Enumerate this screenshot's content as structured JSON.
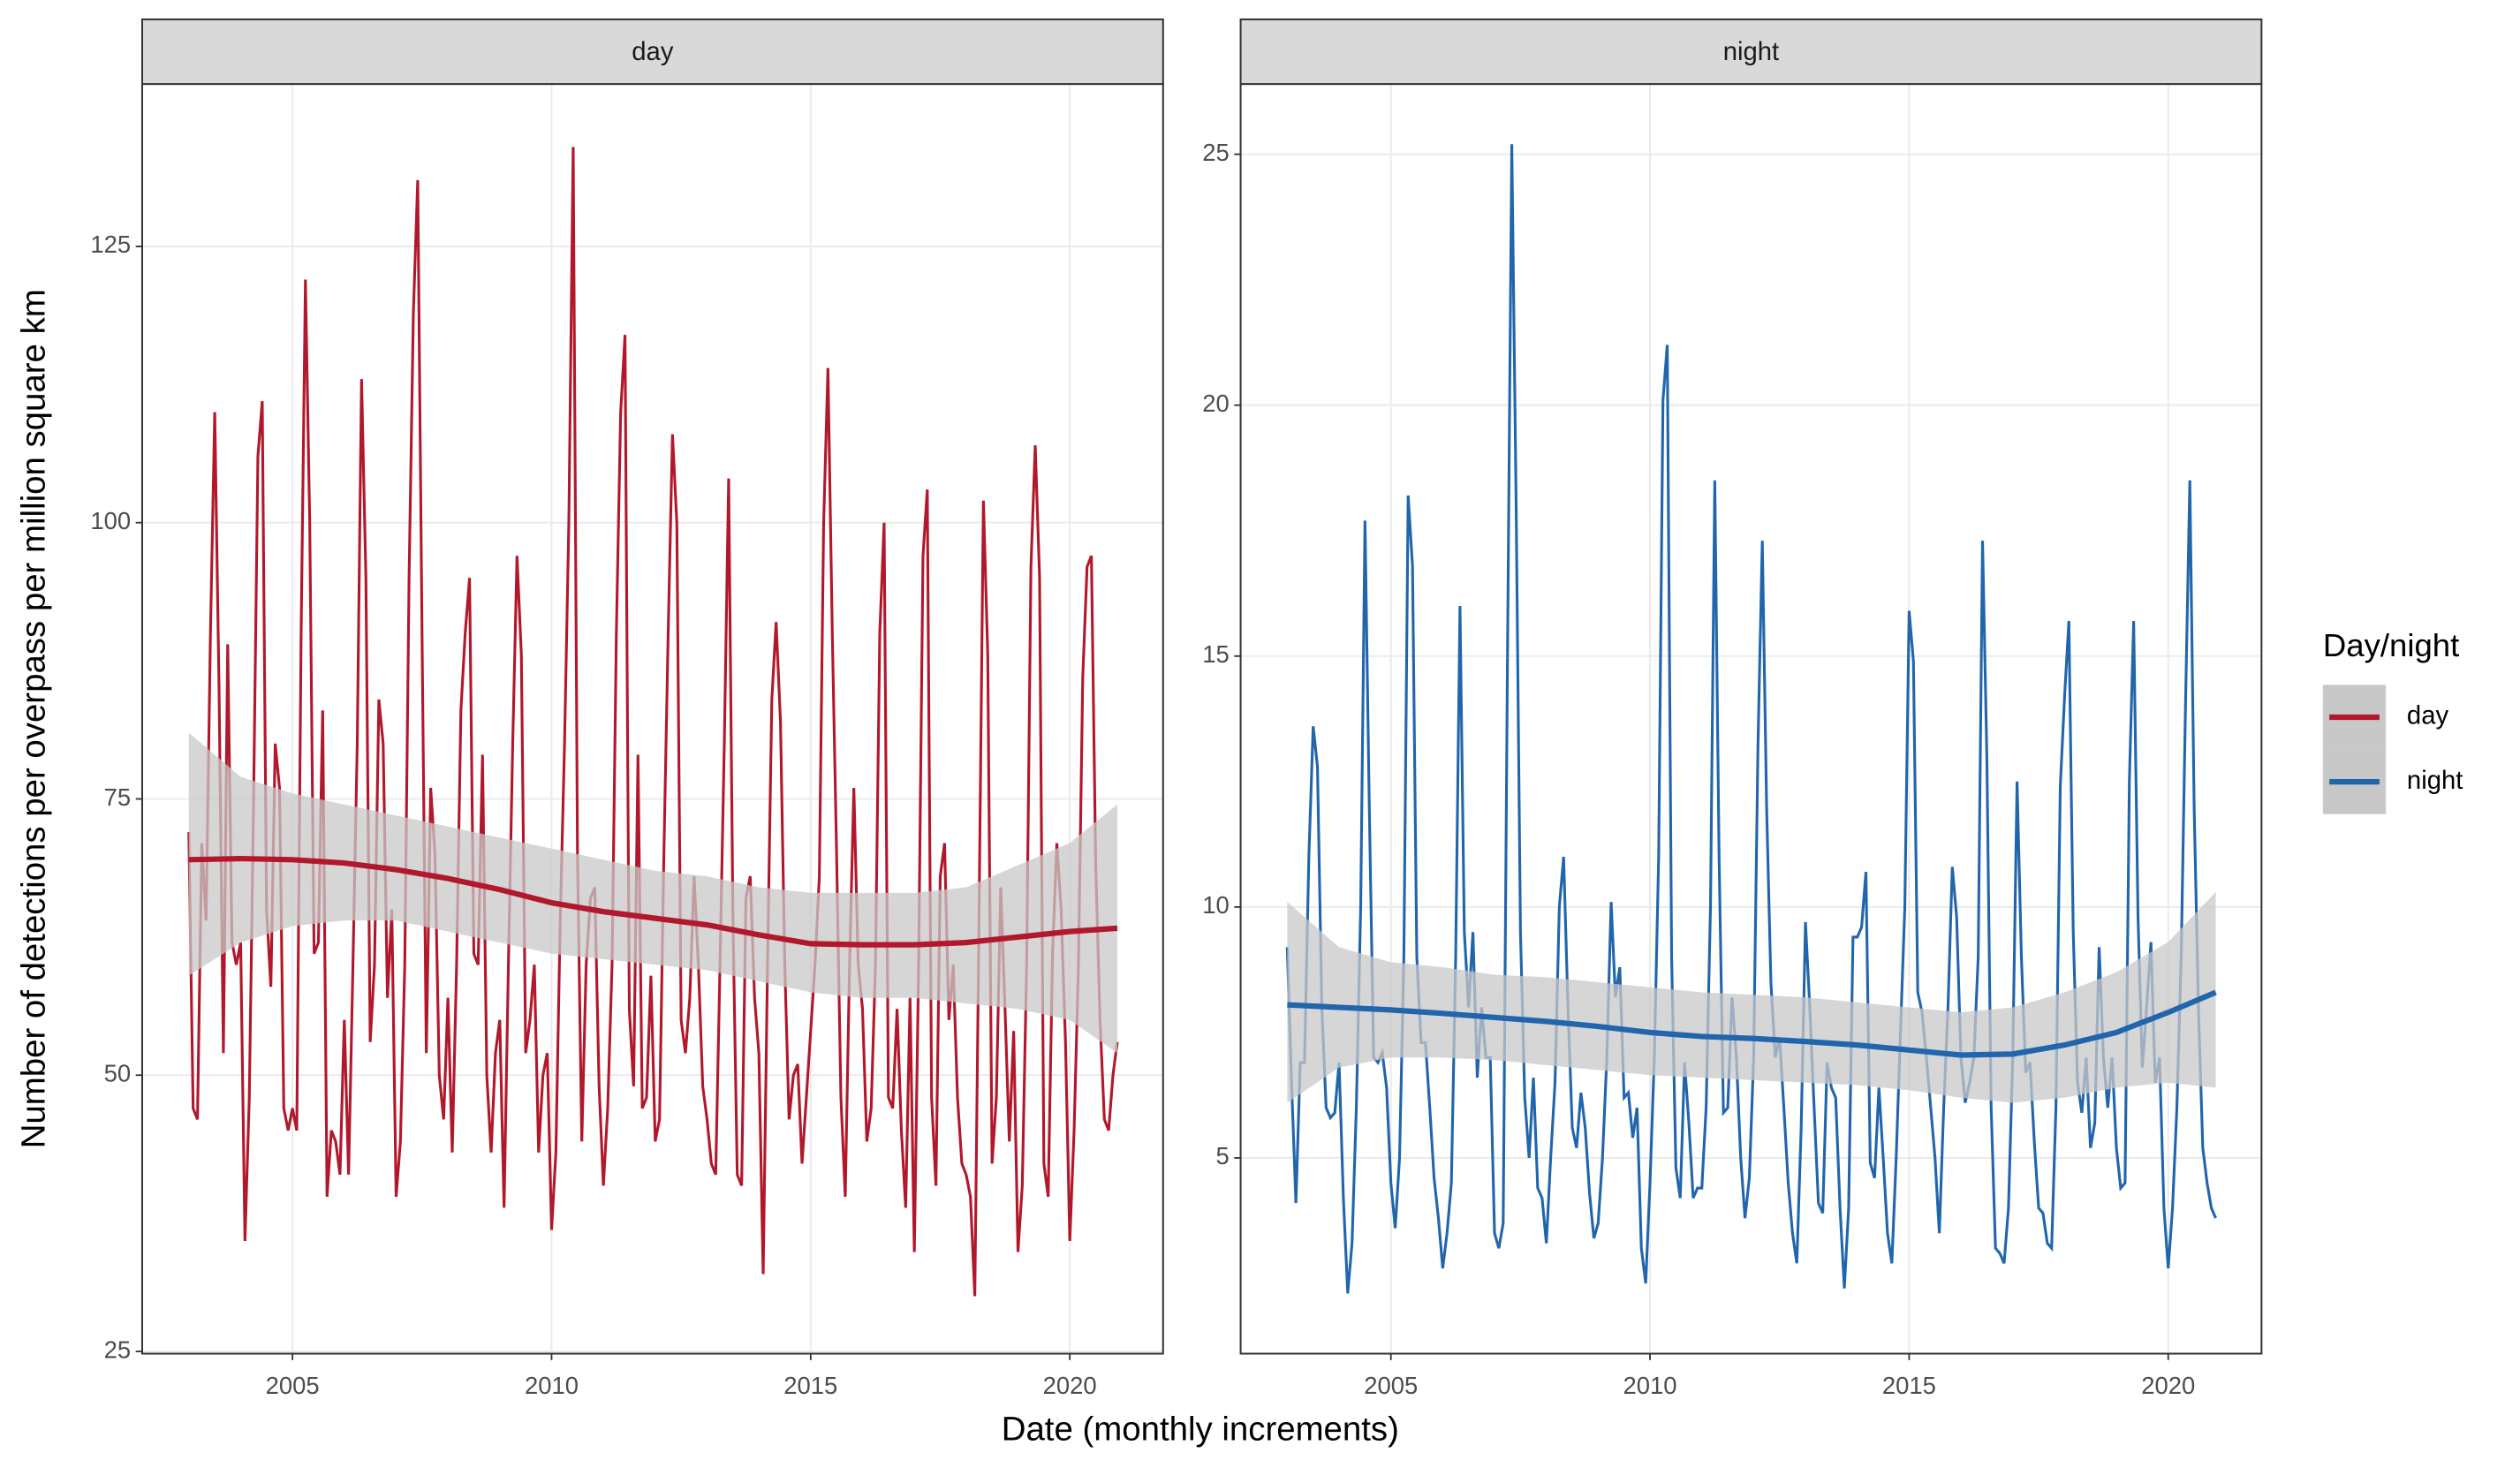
{
  "chart_data": {
    "type": "line",
    "x_label": "Date (monthly increments)",
    "y_label": "Number of detections per overpass per million square km",
    "legend": {
      "title": "Day/night",
      "position": "right"
    },
    "grid": true,
    "xlim": [
      2002.1,
      2021.8
    ],
    "xticks": [
      2005,
      2010,
      2015,
      2020
    ],
    "x": [
      2003,
      2003.083,
      2003.167,
      2003.25,
      2003.333,
      2003.417,
      2003.5,
      2003.583,
      2003.667,
      2003.75,
      2003.833,
      2003.917,
      2004,
      2004.083,
      2004.167,
      2004.25,
      2004.333,
      2004.417,
      2004.5,
      2004.583,
      2004.667,
      2004.75,
      2004.833,
      2004.917,
      2005,
      2005.083,
      2005.167,
      2005.25,
      2005.333,
      2005.417,
      2005.5,
      2005.583,
      2005.667,
      2005.75,
      2005.833,
      2005.917,
      2006,
      2006.083,
      2006.167,
      2006.25,
      2006.333,
      2006.417,
      2006.5,
      2006.583,
      2006.667,
      2006.75,
      2006.833,
      2006.917,
      2007,
      2007.083,
      2007.167,
      2007.25,
      2007.333,
      2007.417,
      2007.5,
      2007.583,
      2007.667,
      2007.75,
      2007.833,
      2007.917,
      2008,
      2008.083,
      2008.167,
      2008.25,
      2008.333,
      2008.417,
      2008.5,
      2008.583,
      2008.667,
      2008.75,
      2008.833,
      2008.917,
      2009,
      2009.083,
      2009.167,
      2009.25,
      2009.333,
      2009.417,
      2009.5,
      2009.583,
      2009.667,
      2009.75,
      2009.833,
      2009.917,
      2010,
      2010.083,
      2010.167,
      2010.25,
      2010.333,
      2010.417,
      2010.5,
      2010.583,
      2010.667,
      2010.75,
      2010.833,
      2010.917,
      2011,
      2011.083,
      2011.167,
      2011.25,
      2011.333,
      2011.417,
      2011.5,
      2011.583,
      2011.667,
      2011.75,
      2011.833,
      2011.917,
      2012,
      2012.083,
      2012.167,
      2012.25,
      2012.333,
      2012.417,
      2012.5,
      2012.583,
      2012.667,
      2012.75,
      2012.833,
      2012.917,
      2013,
      2013.083,
      2013.167,
      2013.25,
      2013.333,
      2013.417,
      2013.5,
      2013.583,
      2013.667,
      2013.75,
      2013.833,
      2013.917,
      2014,
      2014.083,
      2014.167,
      2014.25,
      2014.333,
      2014.417,
      2014.5,
      2014.583,
      2014.667,
      2014.75,
      2014.833,
      2014.917,
      2015,
      2015.083,
      2015.167,
      2015.25,
      2015.333,
      2015.417,
      2015.5,
      2015.583,
      2015.667,
      2015.75,
      2015.833,
      2015.917,
      2016,
      2016.083,
      2016.167,
      2016.25,
      2016.333,
      2016.417,
      2016.5,
      2016.583,
      2016.667,
      2016.75,
      2016.833,
      2016.917,
      2017,
      2017.083,
      2017.167,
      2017.25,
      2017.333,
      2017.417,
      2017.5,
      2017.583,
      2017.667,
      2017.75,
      2017.833,
      2017.917,
      2018,
      2018.083,
      2018.167,
      2018.25,
      2018.333,
      2018.417,
      2018.5,
      2018.583,
      2018.667,
      2018.75,
      2018.833,
      2018.917,
      2019,
      2019.083,
      2019.167,
      2019.25,
      2019.333,
      2019.417,
      2019.5,
      2019.583,
      2019.667,
      2019.75,
      2019.833,
      2019.917,
      2020,
      2020.083,
      2020.167,
      2020.25,
      2020.333,
      2020.417,
      2020.5,
      2020.583,
      2020.667,
      2020.75,
      2020.833,
      2020.917
    ],
    "panels": [
      {
        "title": "day",
        "ylim": [
          24.8,
          139.7
        ],
        "yticks": [
          25,
          50,
          75,
          100,
          125
        ],
        "series": [
          {
            "name": "day",
            "color": "#b2182b",
            "values": [
              72,
              47,
              46,
              71,
              64,
              90,
              110,
              85,
              52,
              89,
              62,
              60,
              62,
              35,
              48,
              75,
              106,
              111,
              65,
              58,
              80,
              76,
              47,
              45,
              47,
              45,
              90,
              122,
              100,
              61,
              62,
              83,
              39,
              45,
              44,
              41,
              55,
              41,
              60,
              80,
              113,
              95,
              53,
              60,
              84,
              80,
              57,
              65,
              39,
              44,
              60,
              95,
              119,
              131,
              90,
              52,
              76,
              70,
              50,
              46,
              57,
              43,
              60,
              83,
              90,
              95,
              61,
              60,
              79,
              50,
              43,
              52,
              55,
              38,
              60,
              80,
              97,
              88,
              52,
              55,
              60,
              43,
              50,
              52,
              36,
              43,
              64,
              80,
              100,
              134,
              70,
              44,
              60,
              66,
              67,
              49,
              40,
              47,
              60,
              90,
              110,
              117,
              56,
              49,
              79,
              47,
              48,
              59,
              44,
              46,
              70,
              90,
              108,
              100,
              55,
              52,
              57,
              68,
              60,
              49,
              46,
              42,
              41,
              60,
              80,
              104,
              64,
              41,
              40,
              66,
              68,
              57,
              52,
              32,
              60,
              84,
              91,
              82,
              60,
              46,
              50,
              51,
              42,
              48,
              54,
              60,
              68,
              100,
              114,
              90,
              70,
              48,
              39,
              60,
              76,
              60,
              56,
              44,
              47,
              60,
              90,
              100,
              48,
              47,
              56,
              45,
              38,
              57,
              34,
              60,
              97,
              103,
              48,
              40,
              68,
              71,
              55,
              60,
              48,
              42,
              41,
              39,
              30,
              65,
              102,
              88,
              42,
              48,
              67,
              56,
              44,
              54,
              34,
              40,
              60,
              96,
              107,
              95,
              42,
              39,
              61,
              71,
              65,
              53,
              35,
              45,
              60,
              86,
              96,
              97,
              69,
              55,
              46,
              45,
              50,
              53
            ]
          }
        ],
        "smooth": {
          "color": "#b2182b",
          "band_color": "#c8c8c8",
          "x": [
            2003,
            2004,
            2005,
            2006,
            2007,
            2008,
            2009,
            2010,
            2011,
            2012,
            2013,
            2014,
            2015,
            2016,
            2017,
            2018,
            2019,
            2020,
            2020.917
          ],
          "values": [
            69.5,
            69.6,
            69.5,
            69.2,
            68.6,
            67.8,
            66.8,
            65.6,
            64.8,
            64.2,
            63.6,
            62.7,
            61.9,
            61.8,
            61.8,
            62,
            62.5,
            63,
            63.3
          ],
          "lower": [
            59,
            62,
            63.5,
            64,
            64,
            63,
            62,
            61,
            60.5,
            60,
            59.5,
            58.5,
            57.5,
            57,
            57,
            56.5,
            56,
            55,
            52
          ],
          "upper": [
            81,
            77,
            75.5,
            74.5,
            73.5,
            72.5,
            71.5,
            70.5,
            69.5,
            68.5,
            68,
            67,
            66.5,
            66.5,
            66.5,
            67,
            69,
            71,
            74.5
          ]
        }
      },
      {
        "title": "night",
        "ylim": [
          1.1,
          26.4
        ],
        "yticks": [
          5,
          10,
          15,
          20,
          25
        ],
        "series": [
          {
            "name": "night",
            "color": "#2166ac",
            "values": [
              9.2,
              6.5,
              4.1,
              6.9,
              6.9,
              11,
              13.6,
              12.8,
              8,
              6,
              5.8,
              5.9,
              6.9,
              4.2,
              2.3,
              3.3,
              6,
              10,
              17.7,
              12,
              7,
              6.9,
              7.1,
              6.4,
              4.5,
              3.6,
              5,
              9,
              18.2,
              16.8,
              9,
              7.3,
              7.3,
              6,
              4.6,
              3.8,
              2.8,
              3.5,
              4.5,
              9,
              16,
              9.5,
              8,
              9.5,
              6.6,
              8,
              7,
              7,
              3.5,
              3.2,
              3.7,
              15,
              25.2,
              18,
              9.5,
              6.2,
              5,
              6.6,
              4.4,
              4.2,
              3.3,
              5,
              6.5,
              10,
              11,
              8,
              5.6,
              5.2,
              6.3,
              5.6,
              4.3,
              3.4,
              3.7,
              5,
              7,
              10.1,
              8.2,
              8.8,
              6.2,
              6.3,
              5.4,
              6,
              3.2,
              2.5,
              4.5,
              7,
              11,
              20.1,
              21.2,
              9,
              4.8,
              4.2,
              6.9,
              5.7,
              4.2,
              4.4,
              4.4,
              6,
              10,
              18.5,
              11,
              5.9,
              6,
              8.2,
              7,
              5,
              3.8,
              4.6,
              7,
              13.2,
              17.3,
              12,
              8.5,
              7,
              7.4,
              6,
              4.5,
              3.5,
              2.9,
              5.6,
              9.7,
              8,
              6,
              4.1,
              3.9,
              6.9,
              6.4,
              6.2,
              4,
              2.4,
              4,
              9.4,
              9.4,
              9.6,
              10.7,
              4.9,
              4.6,
              6.4,
              5,
              3.5,
              2.9,
              5,
              7.5,
              10,
              15.9,
              14.9,
              8.3,
              7.9,
              7,
              6,
              5,
              3.5,
              6,
              8,
              10.8,
              9.8,
              7,
              6.1,
              6.5,
              7,
              9,
              17.3,
              13,
              6,
              3.2,
              3.1,
              2.9,
              4,
              7,
              12.5,
              9,
              6.7,
              6.9,
              5.3,
              4,
              3.9,
              3.3,
              3.2,
              6,
              12.4,
              14.2,
              15.7,
              9.5,
              6.5,
              5.9,
              7,
              5.2,
              5.7,
              9.2,
              7,
              6,
              7,
              5.2,
              4.4,
              4.5,
              12.5,
              15.7,
              9.8,
              6.8,
              8,
              9.3,
              6.5,
              7,
              4,
              2.8,
              4,
              6,
              9,
              14,
              18.5,
              12,
              8,
              5.2,
              4.5,
              4,
              3.8
            ]
          }
        ],
        "smooth": {
          "color": "#2166ac",
          "band_color": "#c8c8c8",
          "x": [
            2003,
            2004,
            2005,
            2006,
            2007,
            2008,
            2009,
            2010,
            2011,
            2012,
            2013,
            2014,
            2015,
            2016,
            2017,
            2018,
            2019,
            2020,
            2020.917
          ],
          "values": [
            8.05,
            8,
            7.95,
            7.88,
            7.8,
            7.72,
            7.62,
            7.5,
            7.42,
            7.38,
            7.32,
            7.25,
            7.15,
            7.05,
            7.07,
            7.25,
            7.5,
            7.9,
            8.3
          ],
          "lower": [
            6.1,
            6.8,
            7,
            7,
            6.95,
            6.85,
            6.75,
            6.65,
            6.6,
            6.55,
            6.5,
            6.45,
            6.35,
            6.2,
            6.1,
            6.2,
            6.4,
            6.5,
            6.4
          ],
          "upper": [
            10.1,
            9.2,
            8.9,
            8.8,
            8.65,
            8.6,
            8.5,
            8.4,
            8.3,
            8.25,
            8.2,
            8.1,
            8,
            7.9,
            8,
            8.3,
            8.7,
            9.3,
            10.3
          ]
        }
      }
    ]
  }
}
